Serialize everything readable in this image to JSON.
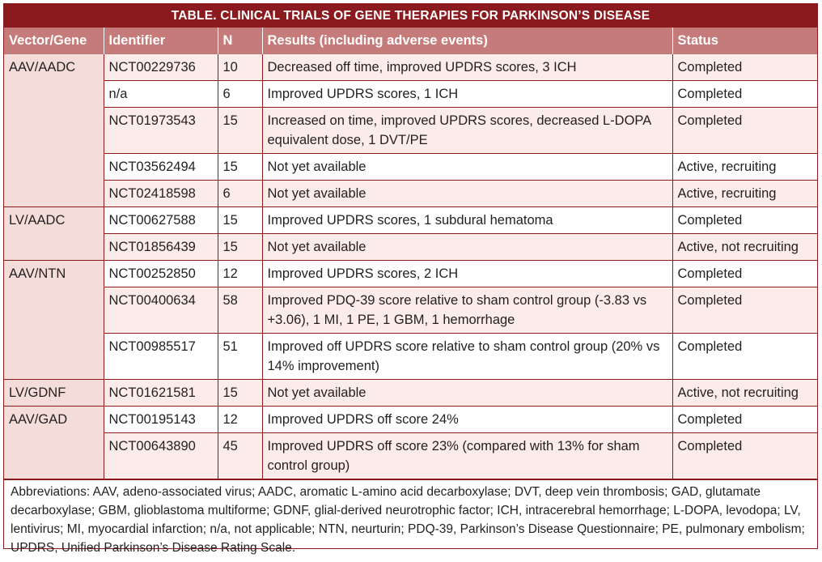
{
  "title": "TABLE. CLINICAL TRIALS OF GENE THERAPIES FOR PARKINSON’S DISEASE",
  "headers": {
    "vector": "Vector/Gene",
    "identifier": "Identifier",
    "n": "N",
    "results": "Results (including adverse events)",
    "status": "Status"
  },
  "groups": [
    {
      "vector": "AAV/AADC",
      "rows": [
        {
          "identifier": "NCT00229736",
          "n": "10",
          "results": "Decreased off time, improved UPDRS scores, 3 ICH",
          "status": "Completed"
        },
        {
          "identifier": "n/a",
          "n": "6",
          "results": "Improved UPDRS scores, 1 ICH",
          "status": "Completed"
        },
        {
          "identifier": "NCT01973543",
          "n": "15",
          "results": "Increased on time, improved UPDRS scores, decreased L-DOPA equivalent dose, 1 DVT/PE",
          "status": "Completed"
        },
        {
          "identifier": "NCT03562494",
          "n": "15",
          "results": "Not yet available",
          "status": "Active, recruiting"
        },
        {
          "identifier": "NCT02418598",
          "n": "6",
          "results": "Not yet available",
          "status": "Active, recruiting"
        }
      ]
    },
    {
      "vector": "LV/AADC",
      "rows": [
        {
          "identifier": "NCT00627588",
          "n": "15",
          "results": "Improved UPDRS scores, 1 subdural hematoma",
          "status": "Completed"
        },
        {
          "identifier": "NCT01856439",
          "n": "15",
          "results": "Not yet available",
          "status": "Active, not recruiting"
        }
      ]
    },
    {
      "vector": "AAV/NTN",
      "rows": [
        {
          "identifier": "NCT00252850",
          "n": "12",
          "results": "Improved UPDRS scores, 2 ICH",
          "status": "Completed"
        },
        {
          "identifier": "NCT00400634",
          "n": "58",
          "results": "Improved PDQ-39 score relative to sham control group (-3.83 vs +3.06), 1 MI, 1 PE, 1 GBM, 1 hemorrhage",
          "status": "Completed"
        },
        {
          "identifier": "NCT00985517",
          "n": "51",
          "results": "Improved off UPDRS score relative to sham control group (20% vs 14% improvement)",
          "status": "Completed"
        }
      ]
    },
    {
      "vector": "LV/GDNF",
      "rows": [
        {
          "identifier": "NCT01621581",
          "n": "15",
          "results": "Not yet available",
          "status": "Active, not recruiting"
        }
      ]
    },
    {
      "vector": "AAV/GAD",
      "rows": [
        {
          "identifier": "NCT00195143",
          "n": "12",
          "results": "Improved UPDRS off score 24%",
          "status": "Completed"
        },
        {
          "identifier": "NCT00643890",
          "n": "45",
          "results": "Improved UPDRS off score 23% (compared with 13% for sham control group)",
          "status": "Completed"
        }
      ]
    }
  ],
  "footnote": "Abbreviations: AAV, adeno-associated virus; AADC, aromatic L-amino acid decarboxylase; DVT, deep vein thrombosis; GAD, glutamate decarboxylase; GBM, glioblastoma multiforme; GDNF, glial-derived neurotrophic factor; ICH, intracerebral hemorrhage; L-DOPA, levodopa; LV, lentivirus; MI, myocardial infarction; n/a, not applicable; NTN, neurturin; PDQ-39, Parkinson’s Disease Questionnaire; PE, pulmonary embolism; UPDRS, Unified Parkinson’s Disease Rating Scale.",
  "colors": {
    "title_bg": "#8b1a1f",
    "header_bg": "#c57b79",
    "group_bg": "#f4dcd8",
    "row_shade": "#fbebe9"
  }
}
